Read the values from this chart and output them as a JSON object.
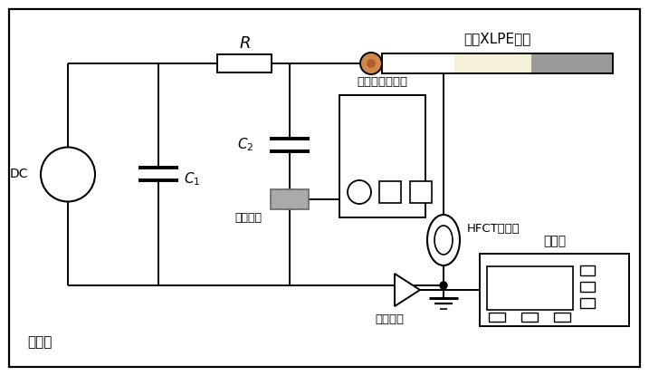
{
  "fig_width": 7.17,
  "fig_height": 4.15,
  "dpi": 100,
  "bg_color": "#ffffff",
  "lc": "#000000",
  "lw": 1.4,
  "label_cable": "直流XLPE电缆",
  "label_shielding": "屏蔽房",
  "label_DC": "DC",
  "label_R": "R",
  "label_C1": "C",
  "label_C2": "C",
  "label_detection": "检测阻抗",
  "label_meter": "直流局放检测仪",
  "label_HFCT": "HFCT传感器",
  "label_conditioner": "调理单元",
  "label_oscilloscope": "示波器",
  "cable_cream": "#f5f0d8",
  "cable_gray": "#999999",
  "cable_orange": "#d4874a",
  "det_gray": "#aaaaaa"
}
